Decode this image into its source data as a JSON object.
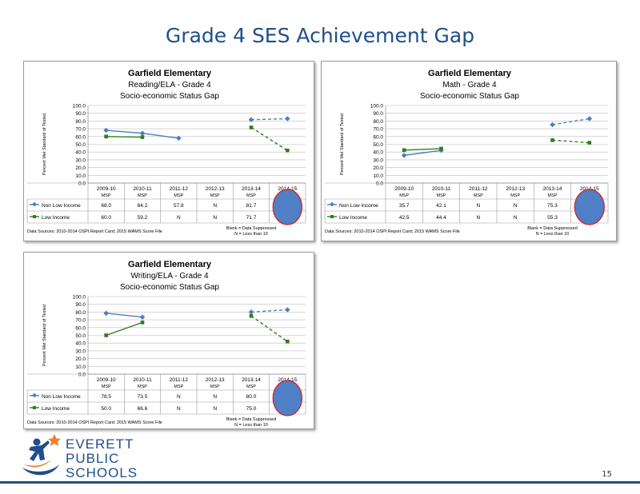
{
  "slide": {
    "title": "Grade 4 SES Achievement Gap",
    "page_number": "15"
  },
  "logo": {
    "line1": "EVERETT",
    "line2": "PUBLIC",
    "line3": "SCHOOLS",
    "colors": {
      "text": "#1f4e8c",
      "star": "#f0802a",
      "swoosh": "#1f4e8c"
    }
  },
  "colors": {
    "non_low_income": "#4a7ebf",
    "low_income": "#2e7d1e",
    "oval_fill": "#4f7fc5",
    "oval_stroke": "#d62020",
    "grid": "#bdbdbd"
  },
  "chart_data": [
    {
      "type": "line",
      "id": "reading",
      "title": "Garfield Elementary",
      "subtitle1": "Reading/ELA - Grade 4",
      "subtitle2": "Socio-economic Status Gap",
      "ylabel": "Percent Met Standard of Tested",
      "ylim": [
        0,
        100
      ],
      "yticks": [
        "100.0",
        "90.0",
        "80.0",
        "70.0",
        "60.0",
        "50.0",
        "40.0",
        "30.0",
        "20.0",
        "10.0",
        "0.0"
      ],
      "categories": [
        "2009-10",
        "2010-11",
        "2011-12",
        "2012-13",
        "2013-14",
        "2014-15"
      ],
      "test_labels": [
        "MSP",
        "MSP",
        "MSP",
        "MSP",
        "MSP",
        ""
      ],
      "series": [
        {
          "name": "Non Low Income",
          "key": "non_low_income",
          "values": [
            68.0,
            64.2,
            57.8,
            null,
            81.7,
            83.0
          ],
          "table": [
            "68.0",
            "64.2",
            "57.8",
            "N",
            "81.7",
            ""
          ]
        },
        {
          "name": "Low Income",
          "key": "low_income",
          "values": [
            60.0,
            59.2,
            null,
            null,
            71.7,
            42.0
          ],
          "table": [
            "60.0",
            "59.2",
            "N",
            "N",
            "71.7",
            ""
          ]
        }
      ],
      "notes": [
        "Blank = Data Suppressed",
        "N = Less than 10"
      ],
      "source": "Data Sources: 2010-2014 OSPI Report Card; 2015 WAMS Score File"
    },
    {
      "type": "line",
      "id": "math",
      "title": "Garfield Elementary",
      "subtitle1": "Math - Grade 4",
      "subtitle2": "Socio-economic Status Gap",
      "ylabel": "Percent Met Standard of Tested",
      "ylim": [
        0,
        100
      ],
      "yticks": [
        "100.0",
        "90.0",
        "80.0",
        "70.0",
        "60.0",
        "50.0",
        "40.0",
        "30.0",
        "20.0",
        "10.0",
        "0.0"
      ],
      "categories": [
        "2009-10",
        "2010-11",
        "2011-12",
        "2012-13",
        "2013-14",
        "2014-15"
      ],
      "test_labels": [
        "MSP",
        "MSP",
        "MSP",
        "MSP",
        "MSP",
        "MSP"
      ],
      "series": [
        {
          "name": "Non Low Income",
          "key": "non_low_income",
          "values": [
            35.7,
            42.1,
            null,
            null,
            75.3,
            83.0
          ],
          "table": [
            "35.7",
            "42.1",
            "N",
            "N",
            "75.3",
            ""
          ]
        },
        {
          "name": "Low Income",
          "key": "low_income",
          "values": [
            42.5,
            44.4,
            null,
            null,
            55.3,
            52.0
          ],
          "table": [
            "42.5",
            "44.4",
            "N",
            "N",
            "55.3",
            ""
          ]
        }
      ],
      "notes": [
        "Blank = Data Suppressed",
        "N = Less than 10"
      ],
      "source": "Data Sources: 2010-2014 OSPI Report Card; 2015 WAMS Score File"
    },
    {
      "type": "line",
      "id": "writing",
      "title": "Garfield Elementary",
      "subtitle1": "Writing/ELA - Grade 4",
      "subtitle2": "Socio-economic Status Gap",
      "ylabel": "Percent Met Standard of Tested",
      "ylim": [
        0,
        100
      ],
      "yticks": [
        "100.0",
        "90.0",
        "80.0",
        "70.0",
        "60.0",
        "50.0",
        "40.0",
        "30.0",
        "20.0",
        "10.0",
        "0.0"
      ],
      "categories": [
        "2009-10",
        "2010-11",
        "2011-12",
        "2012-13",
        "2013-14",
        "2014-15"
      ],
      "test_labels": [
        "MSP",
        "MSP",
        "MSP",
        "MSP",
        "MSP",
        ""
      ],
      "series": [
        {
          "name": "Non Low Income",
          "key": "non_low_income",
          "values": [
            78.5,
            73.5,
            null,
            null,
            80.0,
            83.0
          ],
          "table": [
            "78.5",
            "73.5",
            "N",
            "N",
            "80.0",
            ""
          ]
        },
        {
          "name": "Low Income",
          "key": "low_income",
          "values": [
            50.0,
            66.6,
            null,
            null,
            75.0,
            42.0
          ],
          "table": [
            "50.0",
            "66.6",
            "N",
            "N",
            "75.0",
            ""
          ]
        }
      ],
      "notes": [
        "Blank = Data Suppressed",
        "N = Less than 10"
      ],
      "source": "Data Sources: 2010-2014 OSPI Report Card; 2015 WAMS Score File"
    }
  ]
}
